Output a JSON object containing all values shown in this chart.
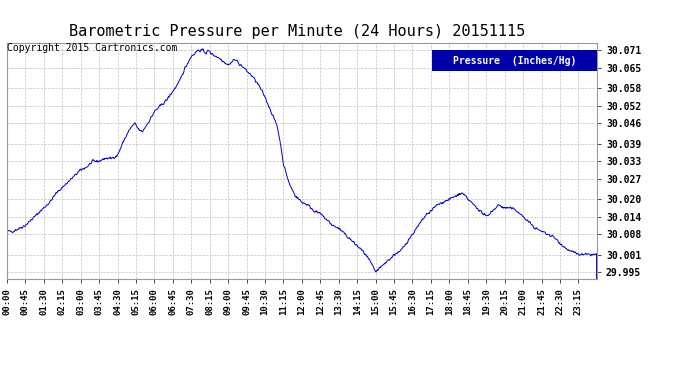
{
  "title": "Barometric Pressure per Minute (24 Hours) 20151115",
  "copyright": "Copyright 2015 Cartronics.com",
  "legend_label": "Pressure  (Inches/Hg)",
  "yticks": [
    29.995,
    30.001,
    30.008,
    30.014,
    30.02,
    30.027,
    30.033,
    30.039,
    30.046,
    30.052,
    30.058,
    30.065,
    30.071
  ],
  "ylim": [
    29.9925,
    30.0735
  ],
  "xtick_labels": [
    "00:00",
    "00:45",
    "01:30",
    "02:15",
    "03:00",
    "03:45",
    "04:30",
    "05:15",
    "06:00",
    "06:45",
    "07:30",
    "08:15",
    "09:00",
    "09:45",
    "10:30",
    "11:15",
    "12:00",
    "12:45",
    "13:30",
    "14:15",
    "15:00",
    "15:45",
    "16:30",
    "17:15",
    "18:00",
    "18:45",
    "19:30",
    "20:15",
    "21:00",
    "21:45",
    "22:30",
    "23:15"
  ],
  "line_color": "#0000cc",
  "background_color": "#ffffff",
  "plot_bg_color": "#ffffff",
  "grid_color": "#c0c0c0",
  "title_fontsize": 11,
  "copyright_fontsize": 7,
  "legend_bg": "#0000aa",
  "legend_text_color": "#ffffff",
  "ctrl_t": [
    0,
    0.25,
    0.5,
    0.75,
    1.0,
    1.25,
    1.5,
    1.75,
    2.0,
    2.25,
    2.5,
    2.75,
    3.0,
    3.25,
    3.5,
    3.75,
    4.0,
    4.25,
    4.5,
    4.75,
    5.0,
    5.2,
    5.35,
    5.5,
    5.65,
    5.8,
    6.0,
    6.25,
    6.5,
    6.75,
    7.0,
    7.25,
    7.5,
    7.65,
    7.75,
    8.0,
    8.1,
    8.2,
    8.3,
    8.5,
    8.7,
    8.85,
    9.0,
    9.15,
    9.25,
    9.4,
    9.5,
    9.65,
    9.75,
    10.0,
    10.25,
    10.5,
    10.75,
    11.0,
    11.15,
    11.25,
    11.5,
    11.75,
    12.0,
    12.25,
    12.5,
    12.75,
    13.0,
    13.25,
    13.5,
    13.75,
    14.0,
    14.25,
    14.5,
    14.75,
    15.0,
    15.25,
    15.5,
    15.65,
    15.75,
    16.0,
    16.25,
    16.5,
    16.75,
    17.0,
    17.25,
    17.5,
    17.75,
    18.0,
    18.25,
    18.5,
    18.65,
    18.75,
    19.0,
    19.25,
    19.5,
    19.75,
    20.0,
    20.25,
    20.5,
    20.75,
    21.0,
    21.25,
    21.5,
    21.75,
    22.0,
    22.25,
    22.5,
    22.75,
    23.0,
    23.25,
    23.5,
    23.75,
    24.0
  ],
  "ctrl_p": [
    30.009,
    30.009,
    30.01,
    30.011,
    30.013,
    30.015,
    30.017,
    30.019,
    30.022,
    30.024,
    30.026,
    30.028,
    30.03,
    30.031,
    30.033,
    30.033,
    30.034,
    30.034,
    30.035,
    30.04,
    30.044,
    30.046,
    30.044,
    30.043,
    30.045,
    30.047,
    30.05,
    30.052,
    30.054,
    30.057,
    30.06,
    30.065,
    30.069,
    30.07,
    30.071,
    30.071,
    30.07,
    30.071,
    30.07,
    30.069,
    30.068,
    30.067,
    30.066,
    30.067,
    30.068,
    30.067,
    30.066,
    30.065,
    30.064,
    30.062,
    30.059,
    30.055,
    30.05,
    30.045,
    30.038,
    30.032,
    30.025,
    30.021,
    30.019,
    30.018,
    30.016,
    30.015,
    30.013,
    30.011,
    30.01,
    30.008,
    30.006,
    30.004,
    30.002,
    29.999,
    29.995,
    29.997,
    29.999,
    30.0,
    30.001,
    30.002,
    30.005,
    30.008,
    30.011,
    30.014,
    30.016,
    30.018,
    30.019,
    30.02,
    30.021,
    30.022,
    30.021,
    30.02,
    30.018,
    30.016,
    30.014,
    30.016,
    30.018,
    30.017,
    30.017,
    30.016,
    30.014,
    30.012,
    30.01,
    30.009,
    30.008,
    30.007,
    30.005,
    30.003,
    30.002,
    30.001,
    30.001,
    30.001,
    30.001
  ]
}
